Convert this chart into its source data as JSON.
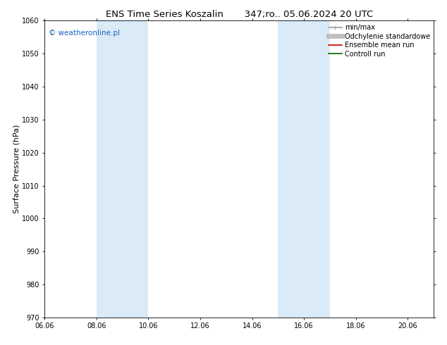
{
  "title": "ENS Time Series Koszalin       347;ro.. 05.06.2024 20 UTC",
  "ylabel": "Surface Pressure (hPa)",
  "ylim": [
    970,
    1060
  ],
  "yticks": [
    970,
    980,
    990,
    1000,
    1010,
    1020,
    1030,
    1040,
    1050,
    1060
  ],
  "xtick_labels": [
    "06.06",
    "08.06",
    "10.06",
    "12.06",
    "14.06",
    "16.06",
    "18.06",
    "20.06"
  ],
  "xtick_positions": [
    0,
    2,
    4,
    6,
    8,
    10,
    12,
    14
  ],
  "xlim": [
    0,
    15
  ],
  "shaded_bands": [
    {
      "x_start": 2.0,
      "x_end": 4.0,
      "color": "#daeaf7"
    },
    {
      "x_start": 9.0,
      "x_end": 11.0,
      "color": "#daeaf7"
    }
  ],
  "watermark_text": "© weatheronline.pl",
  "watermark_color": "#1565c0",
  "watermark_fontsize": 7.5,
  "legend_entries": [
    {
      "label": "min/max",
      "color": "#b0b0b0",
      "lw": 1.5,
      "type": "line_with_markers"
    },
    {
      "label": "Odchylenie standardowe",
      "color": "#c0c0c0",
      "lw": 5,
      "type": "thick_line"
    },
    {
      "label": "Ensemble mean run",
      "color": "#cc0000",
      "lw": 1.2,
      "type": "line"
    },
    {
      "label": "Controll run",
      "color": "#006600",
      "lw": 1.2,
      "type": "line"
    }
  ],
  "bg_color": "#ffffff",
  "title_fontsize": 9.5,
  "tick_fontsize": 7,
  "ylabel_fontsize": 8,
  "legend_fontsize": 7
}
